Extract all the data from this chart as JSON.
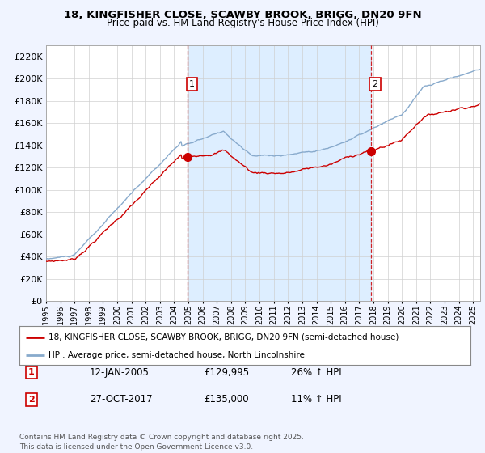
{
  "title1": "18, KINGFISHER CLOSE, SCAWBY BROOK, BRIGG, DN20 9FN",
  "title2": "Price paid vs. HM Land Registry's House Price Index (HPI)",
  "legend1": "18, KINGFISHER CLOSE, SCAWBY BROOK, BRIGG, DN20 9FN (semi-detached house)",
  "legend2": "HPI: Average price, semi-detached house, North Lincolnshire",
  "sale1_date": "12-JAN-2005",
  "sale1_price": "£129,995",
  "sale1_hpi": "26% ↑ HPI",
  "sale2_date": "27-OCT-2017",
  "sale2_price": "£135,000",
  "sale2_hpi": "11% ↑ HPI",
  "footer": "Contains HM Land Registry data © Crown copyright and database right 2025.\nThis data is licensed under the Open Government Licence v3.0.",
  "red_color": "#cc0000",
  "blue_color": "#88aacc",
  "shade_color": "#ddeeff",
  "vline_color": "#cc0000",
  "background_color": "#f0f4ff",
  "plot_bg": "#ffffff",
  "ylim": [
    0,
    230000
  ],
  "yticks": [
    0,
    20000,
    40000,
    60000,
    80000,
    100000,
    120000,
    140000,
    160000,
    180000,
    200000,
    220000
  ],
  "sale1_x": 2004.95,
  "sale1_y": 129995,
  "sale2_x": 2017.82,
  "sale2_y": 135000,
  "xmin": 1995.0,
  "xmax": 2025.5
}
